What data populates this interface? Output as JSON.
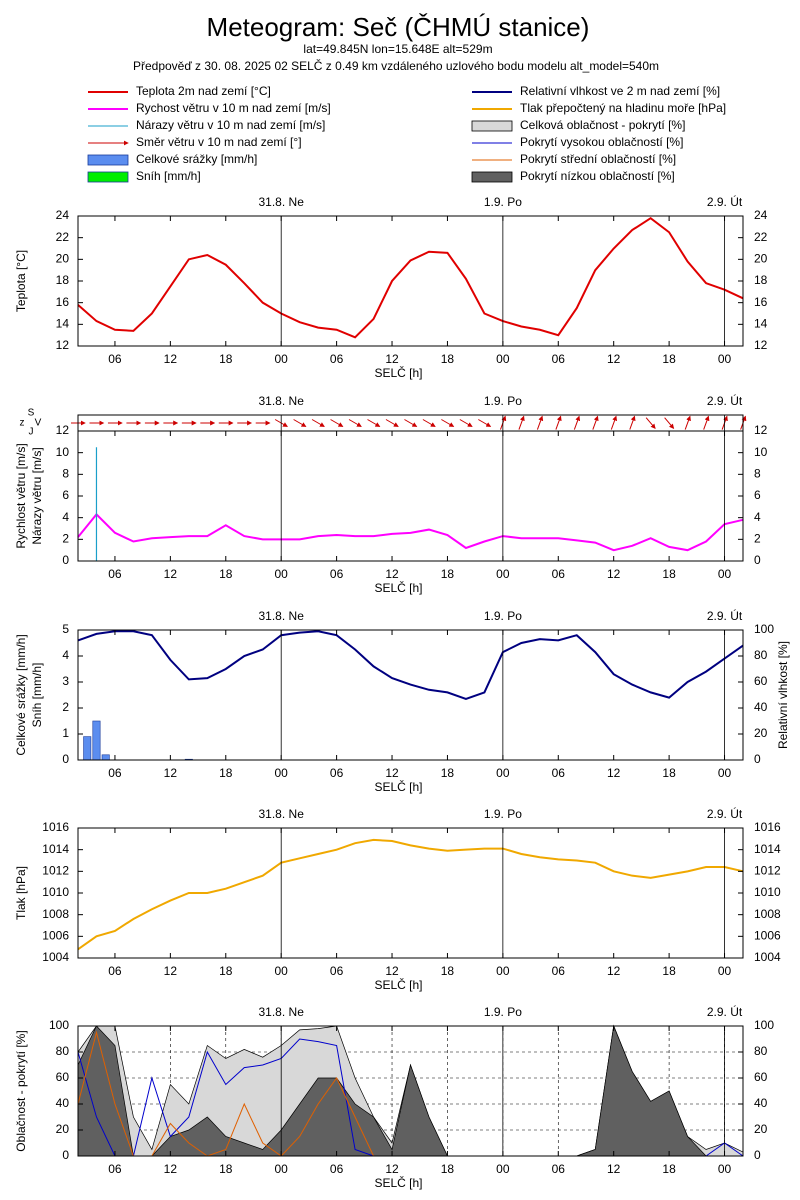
{
  "header": {
    "title": "Meteogram: Seč (ČHMÚ stanice)",
    "location": "lat=49.845N lon=15.648E alt=529m",
    "subtitle": "Předpověď z 30. 08. 2025 02 SELČ z 0.49 km vzdáleného uzlového bodu modelu alt_model=540m"
  },
  "chart_data": [
    {
      "type": "line",
      "ylabel": [
        "Teplota [°C]"
      ],
      "xlabel": "SELČ [h]",
      "x": [
        0,
        2,
        4,
        6,
        8,
        10,
        12,
        14,
        16,
        18,
        20,
        22,
        24,
        26,
        28,
        30,
        32,
        34,
        36,
        38,
        40,
        42,
        44,
        46,
        48,
        50,
        52,
        54,
        56,
        58,
        60,
        62,
        64,
        66,
        68,
        70,
        72
      ],
      "xlim": [
        0,
        72
      ],
      "xticks": [
        {
          "value": 4,
          "label": "06"
        },
        {
          "value": 10,
          "label": "12"
        },
        {
          "value": 16,
          "label": "18"
        },
        {
          "value": 22,
          "label": "00"
        },
        {
          "value": 28,
          "label": "06"
        },
        {
          "value": 34,
          "label": "12"
        },
        {
          "value": 40,
          "label": "18"
        },
        {
          "value": 46,
          "label": "00"
        },
        {
          "value": 52,
          "label": "06"
        },
        {
          "value": 58,
          "label": "12"
        },
        {
          "value": 64,
          "label": "18"
        },
        {
          "value": 70,
          "label": "00"
        }
      ],
      "days": [
        {
          "x": 22,
          "label": "31.8. Ne"
        },
        {
          "x": 46,
          "label": "1.9. Po"
        },
        {
          "x": 70,
          "label": "2.9. Út"
        }
      ],
      "ylim": [
        12,
        24
      ],
      "yticks": [
        12,
        14,
        16,
        18,
        20,
        22,
        24
      ],
      "y2lim": [
        12,
        24
      ],
      "y2ticks": [
        12,
        14,
        16,
        18,
        20,
        22,
        24
      ],
      "grid": false,
      "series": [
        {
          "name": "Teplota 2m nad zemí [°C]",
          "color": "#e00000",
          "style": "line",
          "values": [
            15.8,
            14.3,
            13.5,
            13.4,
            15.0,
            17.5,
            20.0,
            20.4,
            19.5,
            17.8,
            16.0,
            15.0,
            14.2,
            13.7,
            13.5,
            12.8,
            14.5,
            18.0,
            19.9,
            20.7,
            20.6,
            18.2,
            15.0,
            14.3,
            13.8,
            13.5,
            13.0,
            15.5,
            19.0,
            21.0,
            22.7,
            23.8,
            22.5,
            19.8,
            17.8,
            17.2,
            16.4
          ]
        }
      ]
    },
    {
      "type": "line",
      "ylabel": [
        "Rychlost větru [m/s]",
        "Nárazy větru [m/s]"
      ],
      "xlabel": "SELČ [h]",
      "compass": [
        "S",
        "z",
        "V",
        "J"
      ],
      "x": [
        0,
        2,
        4,
        6,
        8,
        10,
        12,
        14,
        16,
        18,
        20,
        22,
        24,
        26,
        28,
        30,
        32,
        34,
        36,
        38,
        40,
        42,
        44,
        46,
        48,
        50,
        52,
        54,
        56,
        58,
        60,
        62,
        64,
        66,
        68,
        70,
        72
      ],
      "xlim": [
        0,
        72
      ],
      "xticks": [
        {
          "value": 4,
          "label": "06"
        },
        {
          "value": 10,
          "label": "12"
        },
        {
          "value": 16,
          "label": "18"
        },
        {
          "value": 22,
          "label": "00"
        },
        {
          "value": 28,
          "label": "06"
        },
        {
          "value": 34,
          "label": "12"
        },
        {
          "value": 40,
          "label": "18"
        },
        {
          "value": 46,
          "label": "00"
        },
        {
          "value": 52,
          "label": "06"
        },
        {
          "value": 58,
          "label": "12"
        },
        {
          "value": 64,
          "label": "18"
        },
        {
          "value": 70,
          "label": "00"
        }
      ],
      "days": [
        {
          "x": 22,
          "label": "31.8. Ne"
        },
        {
          "x": 46,
          "label": "1.9. Po"
        },
        {
          "x": 70,
          "label": "2.9. Út"
        }
      ],
      "ylim": [
        0,
        12
      ],
      "yticks": [
        0,
        2,
        4,
        6,
        8,
        10,
        12
      ],
      "y2lim": [
        0,
        12
      ],
      "y2ticks": [
        0,
        2,
        4,
        6,
        8,
        10,
        12
      ],
      "grid": false,
      "series": [
        {
          "name": "Rychost větru v 10 m nad zemí [m/s]",
          "color": "#ff00ff",
          "style": "line",
          "values": [
            2.2,
            4.3,
            2.6,
            1.8,
            2.1,
            2.2,
            2.3,
            2.3,
            3.3,
            2.3,
            2.0,
            2.0,
            2.0,
            2.3,
            2.4,
            2.3,
            2.3,
            2.5,
            2.6,
            2.9,
            2.4,
            1.2,
            1.8,
            2.3,
            2.1,
            2.1,
            2.1,
            1.9,
            1.7,
            1.0,
            1.4,
            2.1,
            1.3,
            1.0,
            1.8,
            3.4,
            3.8
          ]
        },
        {
          "name": "Nárazy větru v 10 m nad zemí [m/s]",
          "color": "#1a9fc9",
          "style": "spike",
          "values": [
            null,
            10.5,
            null,
            null,
            null,
            null,
            null,
            null,
            null,
            null,
            null,
            null,
            null,
            null,
            null,
            null,
            null,
            null,
            null,
            null,
            null,
            null,
            null,
            null,
            null,
            null,
            null,
            null,
            null,
            null,
            null,
            null,
            null,
            null,
            null,
            null,
            null
          ]
        },
        {
          "name": "Směr větru v 10 m nad zemí [°]",
          "color": "#cc0000",
          "style": "arrows",
          "values": [
            270,
            270,
            270,
            270,
            270,
            270,
            270,
            270,
            270,
            270,
            270,
            300,
            300,
            300,
            300,
            300,
            300,
            300,
            300,
            300,
            300,
            300,
            300,
            200,
            200,
            200,
            200,
            200,
            200,
            200,
            200,
            320,
            320,
            200,
            200,
            200,
            200
          ]
        }
      ]
    },
    {
      "type": "line",
      "ylabel": [
        "Celkové srážky [mm/h]",
        "Sníh [mm/h]"
      ],
      "y2label": "Relativní vlhkost [%]",
      "xlabel": "SELČ [h]",
      "x": [
        0,
        2,
        4,
        6,
        8,
        10,
        12,
        14,
        16,
        18,
        20,
        22,
        24,
        26,
        28,
        30,
        32,
        34,
        36,
        38,
        40,
        42,
        44,
        46,
        48,
        50,
        52,
        54,
        56,
        58,
        60,
        62,
        64,
        66,
        68,
        70,
        72
      ],
      "xlim": [
        0,
        72
      ],
      "xticks": [
        {
          "value": 4,
          "label": "06"
        },
        {
          "value": 10,
          "label": "12"
        },
        {
          "value": 16,
          "label": "18"
        },
        {
          "value": 22,
          "label": "00"
        },
        {
          "value": 28,
          "label": "06"
        },
        {
          "value": 34,
          "label": "12"
        },
        {
          "value": 40,
          "label": "18"
        },
        {
          "value": 46,
          "label": "00"
        },
        {
          "value": 52,
          "label": "06"
        },
        {
          "value": 58,
          "label": "12"
        },
        {
          "value": 64,
          "label": "18"
        },
        {
          "value": 70,
          "label": "00"
        }
      ],
      "days": [
        {
          "x": 22,
          "label": "31.8. Ne"
        },
        {
          "x": 46,
          "label": "1.9. Po"
        },
        {
          "x": 70,
          "label": "2.9. Út"
        }
      ],
      "ylim": [
        0,
        5
      ],
      "yticks": [
        0,
        1,
        2,
        3,
        4,
        5
      ],
      "y2lim": [
        0,
        100
      ],
      "y2ticks": [
        0,
        20,
        40,
        60,
        80,
        100
      ],
      "grid": false,
      "series": [
        {
          "name": "Celkové srážky [mm/h]",
          "color": "#5b8def",
          "style": "bar",
          "x": [
            1,
            2,
            3,
            12
          ],
          "values": [
            0.9,
            1.5,
            0.2,
            0.03
          ]
        },
        {
          "name": "Sníh [mm/h]",
          "color": "#00ee00",
          "style": "bar",
          "x": [
            1,
            2,
            3,
            12
          ],
          "values": [
            0,
            0,
            0,
            0
          ]
        },
        {
          "name": "Relativní vlhkost ve 2 m nad zemí [%]",
          "color": "#000080",
          "style": "line",
          "axis": "y2",
          "values": [
            92,
            97,
            99,
            99,
            96,
            77,
            62,
            63,
            70,
            80,
            85,
            96,
            98,
            99,
            96,
            85,
            72,
            63,
            58,
            54,
            52,
            47,
            52,
            83,
            90,
            93,
            92,
            96,
            83,
            66,
            58,
            52,
            48,
            60,
            68,
            78,
            88
          ]
        }
      ]
    },
    {
      "type": "line",
      "ylabel": [
        "Tlak [hPa]"
      ],
      "xlabel": "SELČ [h]",
      "x": [
        0,
        2,
        4,
        6,
        8,
        10,
        12,
        14,
        16,
        18,
        20,
        22,
        24,
        26,
        28,
        30,
        32,
        34,
        36,
        38,
        40,
        42,
        44,
        46,
        48,
        50,
        52,
        54,
        56,
        58,
        60,
        62,
        64,
        66,
        68,
        70,
        72
      ],
      "xlim": [
        0,
        72
      ],
      "xticks": [
        {
          "value": 4,
          "label": "06"
        },
        {
          "value": 10,
          "label": "12"
        },
        {
          "value": 16,
          "label": "18"
        },
        {
          "value": 22,
          "label": "00"
        },
        {
          "value": 28,
          "label": "06"
        },
        {
          "value": 34,
          "label": "12"
        },
        {
          "value": 40,
          "label": "18"
        },
        {
          "value": 46,
          "label": "00"
        },
        {
          "value": 52,
          "label": "06"
        },
        {
          "value": 58,
          "label": "12"
        },
        {
          "value": 64,
          "label": "18"
        },
        {
          "value": 70,
          "label": "00"
        }
      ],
      "days": [
        {
          "x": 22,
          "label": "31.8. Ne"
        },
        {
          "x": 46,
          "label": "1.9. Po"
        },
        {
          "x": 70,
          "label": "2.9. Út"
        }
      ],
      "ylim": [
        1004,
        1016
      ],
      "yticks": [
        1004,
        1006,
        1008,
        1010,
        1012,
        1014,
        1016
      ],
      "y2lim": [
        1004,
        1016
      ],
      "y2ticks": [
        1004,
        1006,
        1008,
        1010,
        1012,
        1014,
        1016
      ],
      "grid": false,
      "series": [
        {
          "name": "Tlak přepočtený na hladinu moře [hPa]",
          "color": "#f0a800",
          "style": "line",
          "values": [
            1004.8,
            1006.0,
            1006.5,
            1007.6,
            1008.5,
            1009.3,
            1010.0,
            1010.0,
            1010.4,
            1011.0,
            1011.6,
            1012.8,
            1013.2,
            1013.6,
            1014.0,
            1014.6,
            1014.9,
            1014.8,
            1014.4,
            1014.1,
            1013.9,
            1014.0,
            1014.1,
            1014.1,
            1013.6,
            1013.3,
            1013.1,
            1013.0,
            1012.8,
            1012.0,
            1011.6,
            1011.4,
            1011.7,
            1012.0,
            1012.4,
            1012.4,
            1012.0
          ]
        }
      ]
    },
    {
      "type": "line",
      "ylabel": [
        "Oblačnost - pokrytí [%]"
      ],
      "xlabel": "SELČ [h]",
      "x": [
        0,
        2,
        4,
        6,
        8,
        10,
        12,
        14,
        16,
        18,
        20,
        22,
        24,
        26,
        28,
        30,
        32,
        34,
        36,
        38,
        40,
        42,
        44,
        46,
        48,
        50,
        52,
        54,
        56,
        58,
        60,
        62,
        64,
        66,
        68,
        70,
        72
      ],
      "xlim": [
        0,
        72
      ],
      "xticks": [
        {
          "value": 4,
          "label": "06"
        },
        {
          "value": 10,
          "label": "12"
        },
        {
          "value": 16,
          "label": "18"
        },
        {
          "value": 22,
          "label": "00"
        },
        {
          "value": 28,
          "label": "06"
        },
        {
          "value": 34,
          "label": "12"
        },
        {
          "value": 40,
          "label": "18"
        },
        {
          "value": 46,
          "label": "00"
        },
        {
          "value": 52,
          "label": "06"
        },
        {
          "value": 58,
          "label": "12"
        },
        {
          "value": 64,
          "label": "18"
        },
        {
          "value": 70,
          "label": "00"
        }
      ],
      "days": [
        {
          "x": 22,
          "label": "31.8. Ne"
        },
        {
          "x": 46,
          "label": "1.9. Po"
        },
        {
          "x": 70,
          "label": "2.9. Út"
        }
      ],
      "ylim": [
        0,
        100
      ],
      "yticks": [
        0,
        20,
        40,
        60,
        80,
        100
      ],
      "y2lim": [
        0,
        100
      ],
      "y2ticks": [
        0,
        20,
        40,
        60,
        80,
        100
      ],
      "grid": true,
      "series": [
        {
          "name": "Celková oblačnost - pokrytí [%]",
          "color": "#d8d8d8",
          "style": "area",
          "values": [
            80,
            100,
            100,
            30,
            5,
            55,
            40,
            85,
            75,
            82,
            76,
            85,
            97,
            98,
            100,
            60,
            30,
            10,
            70,
            30,
            0,
            0,
            0,
            0,
            0,
            0,
            0,
            0,
            5,
            100,
            65,
            42,
            50,
            15,
            5,
            10,
            3
          ]
        },
        {
          "name": "Pokrytí vysokou oblačností [%]",
          "color": "#0000cc",
          "style": "line",
          "values": [
            80,
            30,
            0,
            0,
            60,
            15,
            30,
            80,
            55,
            68,
            70,
            75,
            90,
            88,
            85,
            5,
            0,
            0,
            0,
            0,
            0,
            0,
            0,
            0,
            0,
            0,
            0,
            0,
            0,
            0,
            0,
            0,
            0,
            0,
            0,
            10,
            0
          ]
        },
        {
          "name": "Pokrytí střední oblačností [%]",
          "color": "#e06000",
          "style": "line",
          "values": [
            40,
            95,
            40,
            0,
            0,
            25,
            10,
            0,
            5,
            40,
            10,
            0,
            15,
            40,
            60,
            30,
            0,
            0,
            0,
            0,
            0,
            0,
            0,
            0,
            0,
            0,
            0,
            0,
            0,
            0,
            0,
            0,
            0,
            0,
            0,
            0,
            0
          ]
        },
        {
          "name": "Pokrytí nízkou oblačností [%]",
          "color": "#606060",
          "style": "area",
          "values": [
            70,
            100,
            85,
            0,
            0,
            15,
            20,
            30,
            15,
            10,
            5,
            20,
            40,
            60,
            60,
            40,
            30,
            5,
            70,
            30,
            0,
            0,
            0,
            0,
            0,
            0,
            0,
            0,
            5,
            100,
            65,
            42,
            50,
            15,
            0,
            0,
            0
          ]
        }
      ]
    }
  ]
}
